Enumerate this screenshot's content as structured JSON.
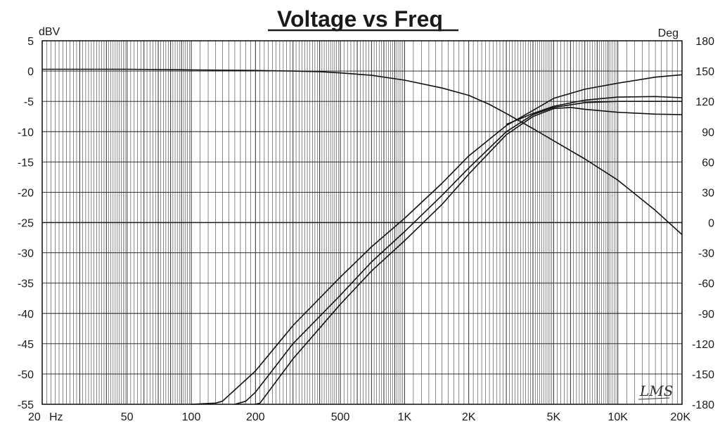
{
  "chart_data": {
    "type": "line",
    "title": "Voltage vs Freq",
    "x_scale": "log",
    "xlim": [
      20,
      20000
    ],
    "x_ticks": [
      {
        "value": 20,
        "label": "20"
      },
      {
        "value": 50,
        "label": "50"
      },
      {
        "value": 100,
        "label": "100"
      },
      {
        "value": 200,
        "label": "200"
      },
      {
        "value": 500,
        "label": "500"
      },
      {
        "value": 1000,
        "label": "1K"
      },
      {
        "value": 2000,
        "label": "2K"
      },
      {
        "value": 5000,
        "label": "5K"
      },
      {
        "value": 10000,
        "label": "10K"
      },
      {
        "value": 20000,
        "label": "20K"
      }
    ],
    "x_unit_label": "Hz",
    "y_left": {
      "label": "dBV",
      "lim": [
        -55,
        5
      ],
      "ticks": [
        5,
        0,
        -5,
        -10,
        -15,
        -20,
        -25,
        -30,
        -35,
        -40,
        -45,
        -50,
        -55
      ]
    },
    "y_right": {
      "label": "Deg",
      "lim": [
        -180,
        180
      ],
      "ticks": [
        180,
        150,
        120,
        90,
        60,
        30,
        0,
        -30,
        -60,
        -90,
        -120,
        -150,
        -180
      ]
    },
    "grid": true,
    "signature": "LMS",
    "series": [
      {
        "axis": "left",
        "points": [
          [
            20,
            0.3
          ],
          [
            50,
            0.3
          ],
          [
            100,
            0.2
          ],
          [
            200,
            0.1
          ],
          [
            300,
            0
          ],
          [
            400,
            -0.1
          ],
          [
            500,
            -0.3
          ],
          [
            700,
            -0.7
          ],
          [
            1000,
            -1.5
          ],
          [
            1500,
            -2.8
          ],
          [
            2000,
            -4
          ],
          [
            2500,
            -5.5
          ],
          [
            3000,
            -7
          ],
          [
            4000,
            -9.5
          ],
          [
            5000,
            -11.5
          ],
          [
            7000,
            -14.5
          ],
          [
            10000,
            -18
          ],
          [
            15000,
            -23
          ],
          [
            20000,
            -27
          ]
        ]
      },
      {
        "axis": "left",
        "points": [
          [
            100,
            -55
          ],
          [
            130,
            -54.8
          ],
          [
            140,
            -54.5
          ],
          [
            200,
            -49.5
          ],
          [
            300,
            -42
          ],
          [
            500,
            -34
          ],
          [
            700,
            -29
          ],
          [
            1000,
            -24.3
          ],
          [
            1500,
            -18.5
          ],
          [
            2000,
            -14
          ],
          [
            3000,
            -9
          ],
          [
            4000,
            -6.5
          ],
          [
            5000,
            -4.5
          ],
          [
            7000,
            -3
          ],
          [
            10000,
            -2
          ],
          [
            15000,
            -1
          ],
          [
            20000,
            -0.6
          ]
        ]
      },
      {
        "axis": "left",
        "points": [
          [
            160,
            -55
          ],
          [
            180,
            -54.5
          ],
          [
            200,
            -53
          ],
          [
            300,
            -45
          ],
          [
            500,
            -37
          ],
          [
            700,
            -31.5
          ],
          [
            1000,
            -26.5
          ],
          [
            1500,
            -20.5
          ],
          [
            2000,
            -16
          ],
          [
            3000,
            -10
          ],
          [
            4000,
            -7.2
          ],
          [
            5000,
            -6
          ],
          [
            7000,
            -5.2
          ],
          [
            10000,
            -5
          ],
          [
            15000,
            -5
          ],
          [
            20000,
            -5
          ]
        ]
      },
      {
        "axis": "left",
        "points": [
          [
            200,
            -55
          ],
          [
            210,
            -54.8
          ],
          [
            300,
            -47.5
          ],
          [
            500,
            -38.5
          ],
          [
            700,
            -33
          ],
          [
            1000,
            -28
          ],
          [
            1500,
            -22
          ],
          [
            2000,
            -17
          ],
          [
            3000,
            -10.5
          ],
          [
            4000,
            -7.5
          ],
          [
            5000,
            -6.2
          ],
          [
            6000,
            -6
          ],
          [
            7000,
            -6.3
          ],
          [
            10000,
            -6.8
          ],
          [
            15000,
            -7.1
          ],
          [
            20000,
            -7.2
          ]
        ]
      },
      {
        "axis": "left",
        "points": [
          [
            3000,
            -8.8
          ],
          [
            4000,
            -7
          ],
          [
            5000,
            -5.8
          ],
          [
            7000,
            -4.8
          ],
          [
            10000,
            -4.3
          ],
          [
            15000,
            -4.2
          ],
          [
            20000,
            -4.4
          ]
        ]
      }
    ]
  }
}
